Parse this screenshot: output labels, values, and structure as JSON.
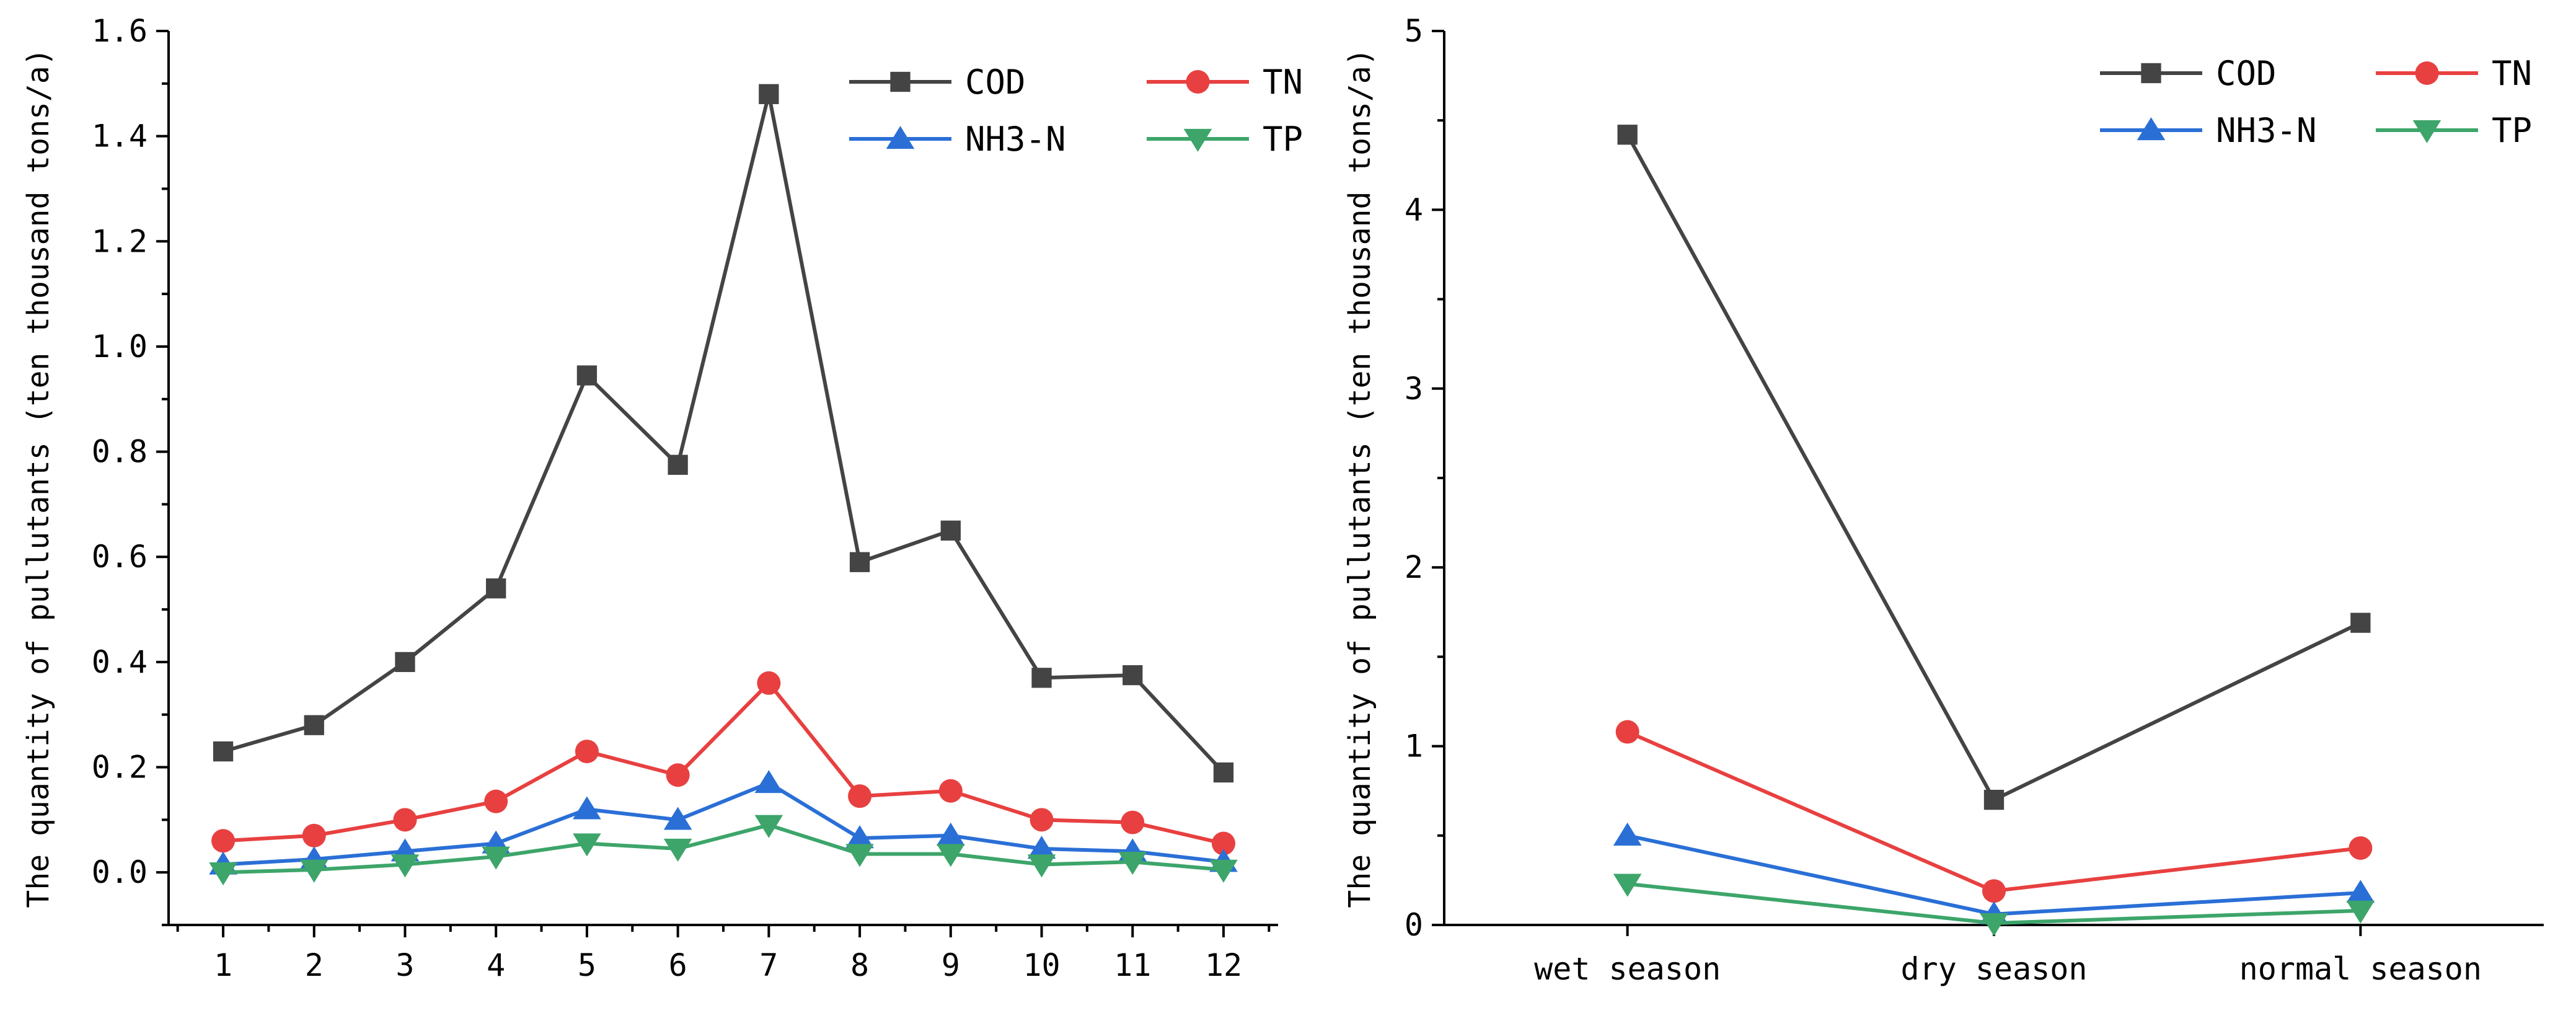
{
  "chart_data": [
    {
      "type": "line",
      "title": "",
      "xlabel": "",
      "ylabel": "The quantity of pullutants (ten thousand tons/a)",
      "x": [
        1,
        2,
        3,
        4,
        5,
        6,
        7,
        8,
        9,
        10,
        11,
        12
      ],
      "categories": [
        "1",
        "2",
        "3",
        "4",
        "5",
        "6",
        "7",
        "8",
        "9",
        "10",
        "11",
        "12"
      ],
      "xlim": [
        0.4,
        12.6
      ],
      "ylim": [
        -0.1,
        1.6
      ],
      "yticks": [
        "0.0",
        "0.2",
        "0.4",
        "0.6",
        "0.8",
        "1.0",
        "1.2",
        "1.4",
        "1.6"
      ],
      "grid": false,
      "legend_position": "top-right",
      "series": [
        {
          "name": "COD",
          "color": "#444444",
          "marker": "square",
          "values": [
            0.23,
            0.28,
            0.4,
            0.54,
            0.945,
            0.775,
            1.48,
            0.59,
            0.65,
            0.37,
            0.375,
            0.19
          ]
        },
        {
          "name": "TN",
          "color": "#e84040",
          "marker": "circle",
          "values": [
            0.06,
            0.07,
            0.1,
            0.135,
            0.23,
            0.185,
            0.36,
            0.145,
            0.155,
            0.1,
            0.095,
            0.055
          ]
        },
        {
          "name": "NH3-N",
          "color": "#2a6fd6",
          "marker": "triangle-up",
          "values": [
            0.015,
            0.025,
            0.04,
            0.055,
            0.12,
            0.1,
            0.17,
            0.065,
            0.07,
            0.045,
            0.04,
            0.02
          ]
        },
        {
          "name": "TP",
          "color": "#3da56a",
          "marker": "triangle-down",
          "values": [
            0.0,
            0.005,
            0.015,
            0.03,
            0.055,
            0.045,
            0.09,
            0.035,
            0.035,
            0.015,
            0.02,
            0.005
          ]
        }
      ]
    },
    {
      "type": "line",
      "title": "",
      "xlabel": "",
      "ylabel": "The quantity of pullutants (ten thousand tons/a)",
      "categories": [
        "wet season",
        "dry season",
        "normal season"
      ],
      "ylim": [
        0,
        5
      ],
      "yticks": [
        "0",
        "1",
        "2",
        "3",
        "4",
        "5"
      ],
      "grid": false,
      "legend_position": "top-right",
      "series": [
        {
          "name": "COD",
          "color": "#444444",
          "marker": "square",
          "values": [
            4.42,
            0.7,
            1.69
          ]
        },
        {
          "name": "TN",
          "color": "#e84040",
          "marker": "circle",
          "values": [
            1.08,
            0.19,
            0.43
          ]
        },
        {
          "name": "NH3-N",
          "color": "#2a6fd6",
          "marker": "triangle-up",
          "values": [
            0.5,
            0.06,
            0.18
          ]
        },
        {
          "name": "TP",
          "color": "#3da56a",
          "marker": "triangle-down",
          "values": [
            0.23,
            0.01,
            0.08
          ]
        }
      ]
    }
  ]
}
